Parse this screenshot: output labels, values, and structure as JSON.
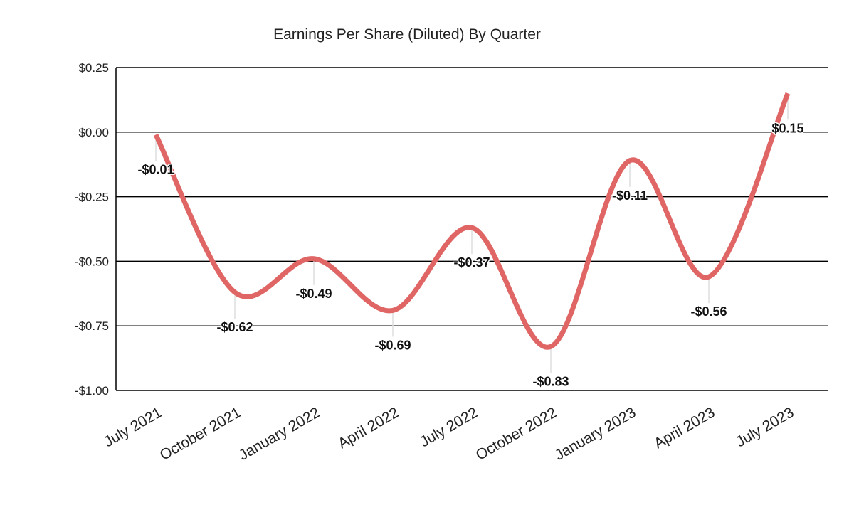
{
  "chart_data": {
    "type": "line",
    "title": "Earnings Per Share (Diluted) By Quarter",
    "xlabel": "",
    "ylabel": "",
    "categories": [
      "July 2021",
      "October 2021",
      "January 2022",
      "April 2022",
      "July 2022",
      "October 2022",
      "January 2023",
      "April 2023",
      "July 2023"
    ],
    "series": [
      {
        "values": [
          -0.01,
          -0.62,
          -0.49,
          -0.69,
          -0.37,
          -0.83,
          -0.11,
          -0.56,
          0.15
        ],
        "labels": [
          "-$0.01",
          "-$0.62",
          "-$0.49",
          "-$0.69",
          "-$0.37",
          "-$0.83",
          "-$0.11",
          "-$0.56",
          "$0.15"
        ],
        "color": "#e06666"
      }
    ],
    "ylim": [
      -1.0,
      0.25
    ],
    "yticks": [
      0.25,
      0.0,
      -0.25,
      -0.5,
      -0.75,
      -1.0
    ],
    "ytick_labels": [
      "$0.25",
      "$0.00",
      "-$0.25",
      "-$0.50",
      "-$0.75",
      "-$1.00"
    ],
    "grid": true,
    "smooth": true,
    "legend": "none"
  }
}
